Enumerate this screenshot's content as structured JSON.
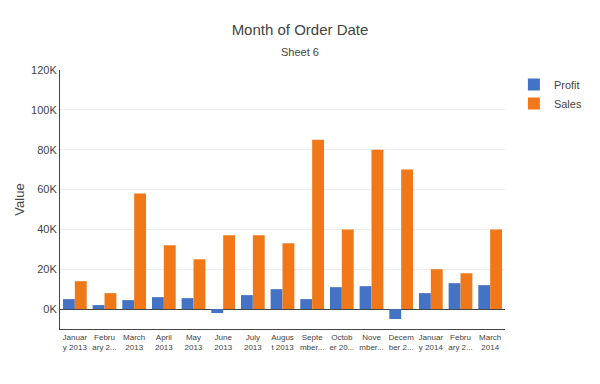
{
  "chart_data": {
    "type": "bar",
    "title": "Month of Order Date",
    "subtitle": "Sheet 6",
    "ylabel": "Value",
    "categories": [
      "Januar\ny 2013",
      "Febru\nary 2...",
      "March\n2013",
      "April\n2013",
      "May\n2013",
      "June\n2013",
      "July\n2013",
      "Augus\nt 2013",
      "Septe\nmber...",
      "Octob\ner 20...",
      "Nove\nmber...",
      "Decem\nber 2...",
      "Januar\ny 2014",
      "Febru\nary 2...",
      "March\n2014"
    ],
    "series": [
      {
        "name": "Profit",
        "color": "#4472C4",
        "values": [
          5000,
          2000,
          4500,
          6000,
          5500,
          -2000,
          7000,
          10000,
          5000,
          11000,
          11500,
          -5000,
          8000,
          13000,
          12000
        ]
      },
      {
        "name": "Sales",
        "color": "#F07818",
        "values": [
          14000,
          8000,
          58000,
          32000,
          25000,
          37000,
          37000,
          33000,
          85000,
          40000,
          80000,
          70000,
          20000,
          18000,
          40000
        ]
      }
    ],
    "ylim": [
      -10000,
      120000
    ],
    "yticks": [
      {
        "value": 0,
        "label": "0K"
      },
      {
        "value": 20000,
        "label": "20K"
      },
      {
        "value": 40000,
        "label": "40K"
      },
      {
        "value": 60000,
        "label": "60K"
      },
      {
        "value": 80000,
        "label": "80K"
      },
      {
        "value": 100000,
        "label": "100K"
      },
      {
        "value": 120000,
        "label": "120K"
      }
    ],
    "grid": true,
    "legend": "right"
  }
}
